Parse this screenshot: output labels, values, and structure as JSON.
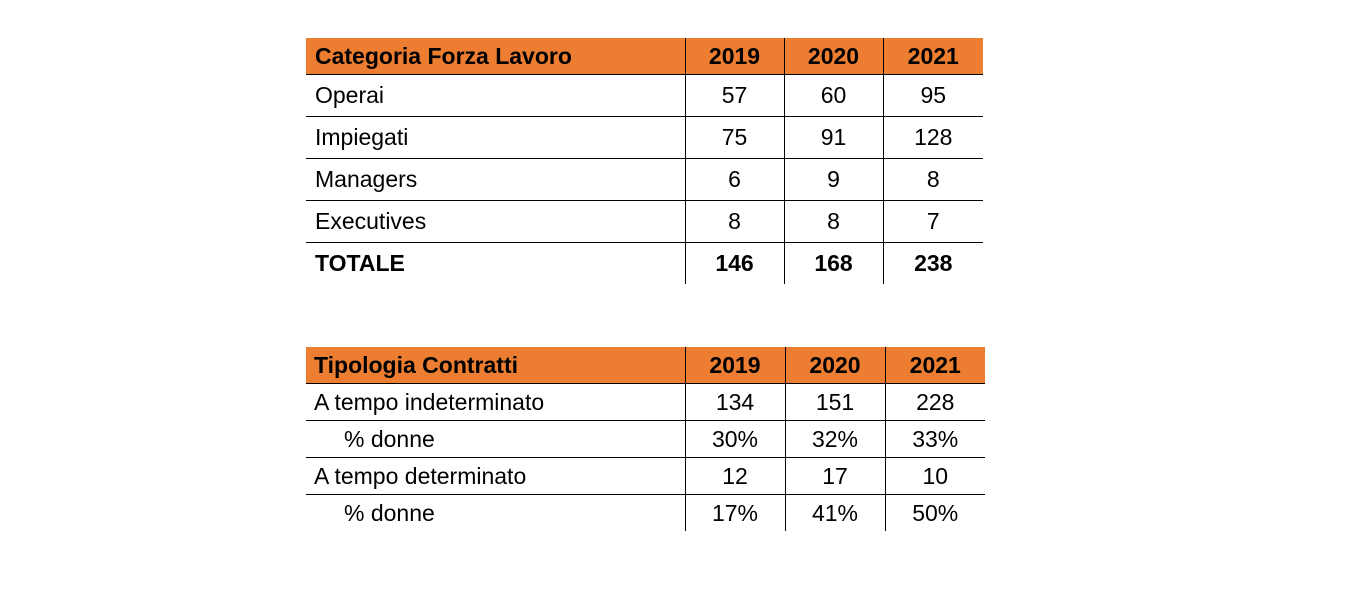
{
  "workforce_table": {
    "headers": [
      "Categoria Forza Lavoro",
      "2019",
      "2020",
      "2021"
    ],
    "rows": [
      {
        "label": "Operai",
        "values": [
          "57",
          "60",
          "95"
        ]
      },
      {
        "label": "Impiegati",
        "values": [
          "75",
          "91",
          "128"
        ]
      },
      {
        "label": "Managers",
        "values": [
          "6",
          "9",
          "8"
        ]
      },
      {
        "label": "Executives",
        "values": [
          "8",
          "8",
          "7"
        ]
      },
      {
        "label": "TOTALE",
        "values": [
          "146",
          "168",
          "238"
        ]
      }
    ]
  },
  "contracts_table": {
    "headers": [
      "Tipologia Contratti",
      "2019",
      "2020",
      "2021"
    ],
    "rows": [
      {
        "label": "A tempo indeterminato",
        "values": [
          "134",
          "151",
          "228"
        ]
      },
      {
        "label": "% donne",
        "values": [
          "30%",
          "32%",
          "33%"
        ]
      },
      {
        "label": "A tempo determinato",
        "values": [
          "12",
          "17",
          "10"
        ]
      },
      {
        "label": "% donne",
        "values": [
          "17%",
          "41%",
          "50%"
        ]
      }
    ]
  },
  "colors": {
    "header_fill": "#ed7d31",
    "rule": "#000000"
  }
}
